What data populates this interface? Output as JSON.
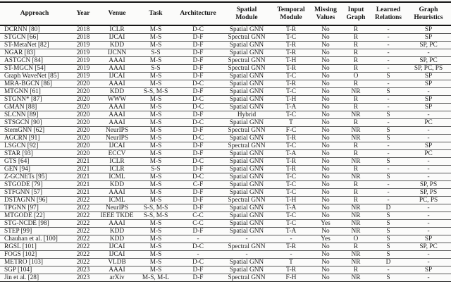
{
  "table": {
    "columns": [
      "Approach",
      "Year",
      "Venue",
      "Task",
      "Architecture",
      "Spatial\nModule",
      "Temporal\nModule",
      "Missing\nValues",
      "Input\nGraph",
      "Learned\nRelations",
      "Graph\nHeuristics"
    ],
    "rows": [
      [
        "DCRNN [80]",
        "2018",
        "ICLR",
        "M-S",
        "D-C",
        "Spatial GNN",
        "T-R",
        "No",
        "R",
        "-",
        "SP"
      ],
      [
        "STGCN [66]",
        "2018",
        "IJCAI",
        "M-S",
        "D-F",
        "Spectral GNN",
        "T-C",
        "No",
        "R",
        "-",
        "SP"
      ],
      [
        "ST-MetaNet [82]",
        "2019",
        "KDD",
        "M-S",
        "D-F",
        "Spatial GNN",
        "T-R",
        "No",
        "R",
        "-",
        "SP, PC"
      ],
      [
        "NGAR [83]",
        "2019",
        "IJCNN",
        "S-S",
        "D-F",
        "Spatial GNN",
        "T-R",
        "No",
        "R",
        "-",
        "-"
      ],
      [
        "ASTGCN [84]",
        "2019",
        "AAAI",
        "M-S",
        "D-F",
        "Spectral GNN",
        "T-H",
        "No",
        "R",
        "-",
        "SP, PC"
      ],
      [
        "ST-MGCN [54]",
        "2019",
        "AAAI",
        "S-S",
        "D-F",
        "Spectral GNN",
        "T-R",
        "No",
        "R",
        "-",
        "SP, PC, PS"
      ],
      [
        "Graph WaveNet [85]",
        "2019",
        "IJCAI",
        "M-S",
        "D-F",
        "Spatial GNN",
        "T-C",
        "No",
        "O",
        "S",
        "SP"
      ],
      [
        "MRA-BGCN [86]",
        "2020",
        "AAAI",
        "M-S",
        "D-C",
        "Spatial GNN",
        "T-R",
        "No",
        "R",
        "-",
        "SP"
      ],
      [
        "MTGNN [61]",
        "2020",
        "KDD",
        "S-S, M-S",
        "D-F",
        "Spatial GNN",
        "T-C",
        "No",
        "NR",
        "S",
        "-"
      ],
      [
        "STGNN* [87]",
        "2020",
        "WWW",
        "M-S",
        "D-C",
        "Spatial GNN",
        "T-H",
        "No",
        "R",
        "-",
        "SP"
      ],
      [
        "GMAN [88]",
        "2020",
        "AAAI",
        "M-S",
        "D-C",
        "Spatial GNN",
        "T-A",
        "No",
        "R",
        "-",
        "SP"
      ],
      [
        "SLCNN [89]",
        "2020",
        "AAAI",
        "M-S",
        "D-F",
        "Hybrid",
        "T-C",
        "No",
        "NR",
        "S",
        "-"
      ],
      [
        "STSGCN [90]",
        "2020",
        "AAAI",
        "M-S",
        "D-C",
        "Spatial GNN",
        "T",
        "No",
        "R",
        "-",
        "PC"
      ],
      [
        "StemGNN [62]",
        "2020",
        "NeurIPS",
        "M-S",
        "D-F",
        "Spectral GNN",
        "F-C",
        "No",
        "NR",
        "S",
        "-"
      ],
      [
        "AGCRN [91]",
        "2020",
        "NeurIPS",
        "M-S",
        "D-C",
        "Spatial GNN",
        "T-R",
        "No",
        "NR",
        "S",
        "-"
      ],
      [
        "LSGCN [92]",
        "2020",
        "IJCAI",
        "M-S",
        "D-F",
        "Spectral GNN",
        "T-C",
        "No",
        "R",
        "-",
        "SP"
      ],
      [
        "STAR [93]",
        "2020",
        "ECCV",
        "M-S",
        "D-F",
        "Spatial GNN",
        "T-A",
        "No",
        "R",
        "-",
        "PC"
      ],
      [
        "GTS [64]",
        "2021",
        "ICLR",
        "M-S",
        "D-C",
        "Spatial GNN",
        "T-R",
        "No",
        "NR",
        "S",
        "-"
      ],
      [
        "GEN [94]",
        "2021",
        "ICLR",
        "S-S",
        "D-F",
        "Spatial GNN",
        "T-R",
        "No",
        "R",
        "-",
        "-"
      ],
      [
        "Z-GCNETs [95]",
        "2021",
        "ICML",
        "M-S",
        "D-C",
        "Spatial GNN",
        "T-C",
        "No",
        "NR",
        "S",
        "-"
      ],
      [
        "STGODE [79]",
        "2021",
        "KDD",
        "M-S",
        "C-F",
        "Spatial GNN",
        "T-C",
        "No",
        "R",
        "-",
        "SP, PS"
      ],
      [
        "STFGNN [57]",
        "2021",
        "AAAI",
        "M-S",
        "D-F",
        "Spatial GNN",
        "T-C",
        "No",
        "R",
        "-",
        "SP, PS"
      ],
      [
        "DSTAGNN [96]",
        "2022",
        "ICML",
        "M-S",
        "D-F",
        "Spectral GNN",
        "T-H",
        "No",
        "R",
        "-",
        "PC, PS"
      ],
      [
        "TPGNN [97]",
        "2022",
        "NeurIPS",
        "S-S, M-S",
        "D-F",
        "Spatial GNN",
        "T-A",
        "No",
        "NR",
        "D",
        "-"
      ],
      [
        "MTGODE [22]",
        "2022",
        "IEEE TKDE",
        "S-S, M-S",
        "C-C",
        "Spatial GNN",
        "T-C",
        "No",
        "NR",
        "S",
        "-"
      ],
      [
        "STG-NCDE [98]",
        "2022",
        "AAAI",
        "M-S",
        "C-C",
        "Spatial GNN",
        "T-C",
        "Yes",
        "NR",
        "S",
        "-"
      ],
      [
        "STEP [99]",
        "2022",
        "KDD",
        "M-S",
        "D-F",
        "Spatial GNN",
        "T-A",
        "No",
        "NR",
        "S",
        "-"
      ],
      [
        "Chauhan et al. [100]",
        "2022",
        "KDD",
        "M-S",
        "-",
        "-",
        "-",
        "Yes",
        "O",
        "S",
        "SP"
      ],
      [
        "RGSL [101]",
        "2022",
        "IJCAI",
        "M-S",
        "D-C",
        "Spectral GNN",
        "T-R",
        "No",
        "R",
        "S",
        "SP, PC"
      ],
      [
        "FOGS [102]",
        "2022",
        "IJCAI",
        "M-S",
        "-",
        "-",
        "-",
        "No",
        "NR",
        "S",
        "-"
      ],
      [
        "METRO [103]",
        "2022",
        "VLDB",
        "M-S",
        "D-C",
        "Spatial GNN",
        "T",
        "No",
        "NR",
        "D",
        "-"
      ],
      [
        "SGP [104]",
        "2023",
        "AAAI",
        "M-S",
        "D-F",
        "Spatial GNN",
        "T-R",
        "No",
        "R",
        "-",
        "SP"
      ],
      [
        "Jin et al. [28]",
        "2023",
        "arXiv",
        "M-S, M-L",
        "D-F",
        "Spectral GNN",
        "F-H",
        "No",
        "NR",
        "S",
        "-"
      ]
    ]
  }
}
